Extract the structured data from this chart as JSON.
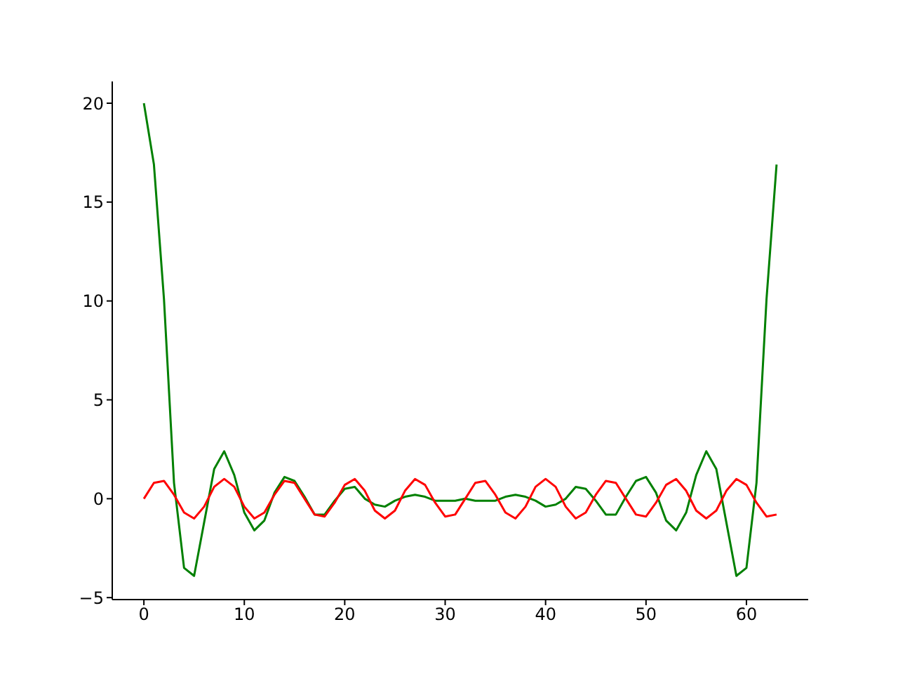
{
  "chart_data": {
    "type": "line",
    "x": [
      0,
      1,
      2,
      3,
      4,
      5,
      6,
      7,
      8,
      9,
      10,
      11,
      12,
      13,
      14,
      15,
      16,
      17,
      18,
      19,
      20,
      21,
      22,
      23,
      24,
      25,
      26,
      27,
      28,
      29,
      30,
      31,
      32,
      33,
      34,
      35,
      36,
      37,
      38,
      39,
      40,
      41,
      42,
      43,
      44,
      45,
      46,
      47,
      48,
      49,
      50,
      51,
      52,
      53,
      54,
      55,
      56,
      57,
      58,
      59,
      60,
      61,
      62,
      63
    ],
    "series": [
      {
        "color": "#008000",
        "values": [
          20,
          16.9,
          10.1,
          0.8,
          -3.5,
          -3.9,
          -1.2,
          1.5,
          2.4,
          1.2,
          -0.7,
          -1.6,
          -1.1,
          0.3,
          1.1,
          0.9,
          0.1,
          -0.8,
          -0.8,
          -0.1,
          0.5,
          0.6,
          0.0,
          -0.3,
          -0.4,
          -0.1,
          0.1,
          0.2,
          0.1,
          -0.1,
          -0.1,
          -0.1,
          0.0,
          -0.1,
          -0.1,
          -0.1,
          0.1,
          0.2,
          0.1,
          -0.1,
          -0.4,
          -0.3,
          0.0,
          0.6,
          0.5,
          -0.1,
          -0.8,
          -0.8,
          0.1,
          0.9,
          1.1,
          0.3,
          -1.1,
          -1.6,
          -0.7,
          1.2,
          2.4,
          1.5,
          -1.2,
          -3.9,
          -3.5,
          0.8,
          10.1,
          16.9
        ]
      },
      {
        "color": "#ff0000",
        "values": [
          0,
          0.8,
          0.9,
          0.2,
          -0.7,
          -1.0,
          -0.4,
          0.6,
          1.0,
          0.6,
          -0.4,
          -1.0,
          -0.7,
          0.2,
          0.9,
          0.8,
          0,
          -0.8,
          -0.9,
          -0.2,
          0.7,
          1.0,
          0.4,
          -0.6,
          -1.0,
          -0.6,
          0.4,
          1.0,
          0.7,
          -0.2,
          -0.9,
          -0.8,
          0,
          0.8,
          0.9,
          0.2,
          -0.7,
          -1.0,
          -0.4,
          0.6,
          1.0,
          0.6,
          -0.4,
          -1.0,
          -0.7,
          0.2,
          0.9,
          0.8,
          0,
          -0.8,
          -0.9,
          -0.2,
          0.7,
          1.0,
          0.4,
          -0.6,
          -1.0,
          -0.6,
          0.4,
          1.0,
          0.7,
          -0.2,
          -0.9,
          -0.8
        ]
      }
    ],
    "xlim": [
      -3.15,
      66.15
    ],
    "xticks": [
      0,
      10,
      20,
      30,
      40,
      50,
      60
    ],
    "ylim": [
      -5.1,
      21.1
    ],
    "yticks": [
      -5,
      0,
      5,
      10,
      15,
      20
    ],
    "grid": false,
    "marker": "none",
    "line_style": "solid"
  }
}
